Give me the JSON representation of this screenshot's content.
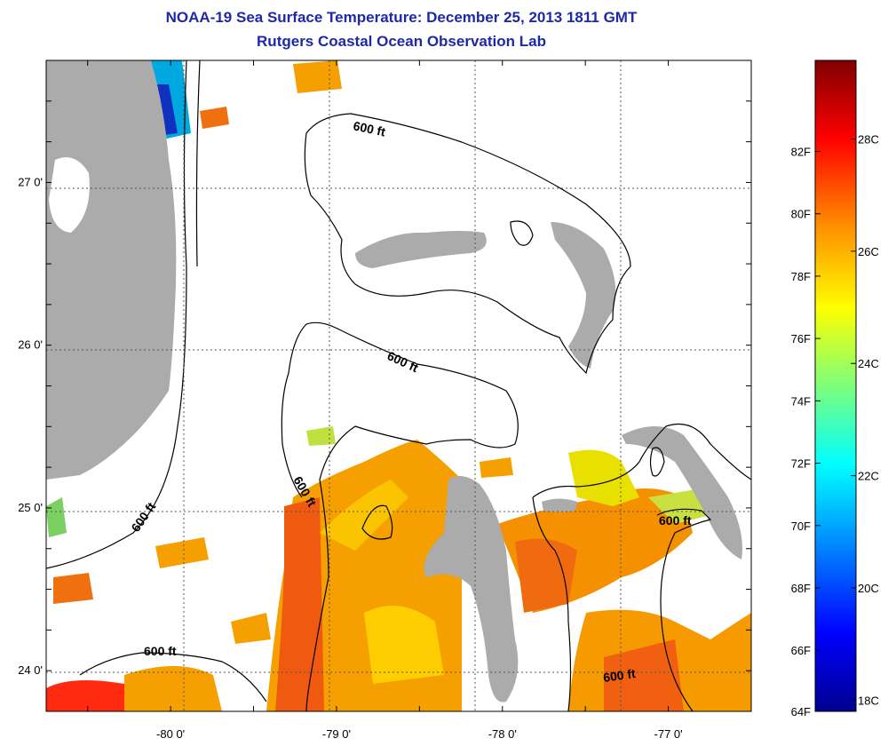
{
  "title": {
    "line1": "NOAA-19 Sea Surface Temperature:  December 25, 2013 1811 GMT",
    "line2": "Rutgers Coastal Ocean Observation Lab"
  },
  "map": {
    "lon_range": [
      -80.75,
      -76.5
    ],
    "lat_range": [
      23.75,
      27.75
    ],
    "lon_ticks": [
      {
        "value": -80,
        "label": "-80 0'"
      },
      {
        "value": -79,
        "label": "-79 0'"
      },
      {
        "value": -78,
        "label": "-78 0'"
      },
      {
        "value": -77,
        "label": "-77 0'"
      }
    ],
    "lat_ticks": [
      {
        "value": 24,
        "label": "24 0'"
      },
      {
        "value": 25,
        "label": "25 0'"
      },
      {
        "value": 26,
        "label": "26 0'"
      },
      {
        "value": 27,
        "label": "27 0'"
      }
    ],
    "contour_label": "600 ft",
    "colors": {
      "land": "#ababab",
      "contour": "#000000",
      "grid": "#555555"
    }
  },
  "colorbar": {
    "fahrenheit_labels": [
      "82F",
      "80F",
      "78F",
      "76F",
      "74F",
      "72F",
      "70F",
      "68F",
      "66F",
      "64F"
    ],
    "celsius_labels": [
      "28C",
      "26C",
      "24C",
      "22C",
      "20C",
      "18C"
    ],
    "range_c": [
      17.8,
      29.4
    ],
    "stops": [
      "#00008f",
      "#0000ff",
      "#00b4ff",
      "#00ffff",
      "#7dff7a",
      "#ffff00",
      "#ff8a00",
      "#ff0000",
      "#800000"
    ]
  }
}
